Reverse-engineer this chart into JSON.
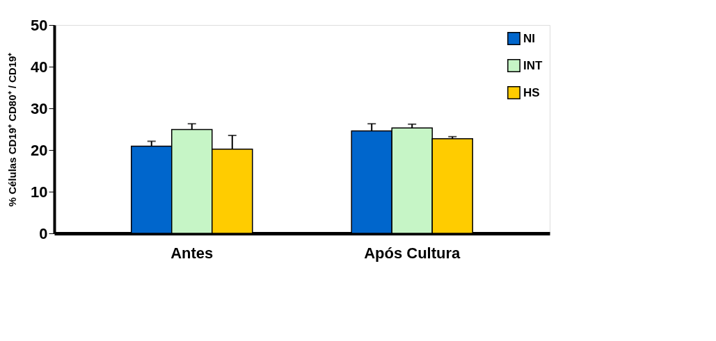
{
  "chart_data": {
    "type": "bar",
    "ylabel": "% Células CD19⁺ CD80⁺ / CD19⁺",
    "categories": [
      "Antes",
      "Após Cultura"
    ],
    "series": [
      {
        "name": "NI",
        "color": "#0066cc",
        "values": [
          20.9,
          24.6
        ],
        "errors": [
          [
            20.9,
            22.1
          ],
          [
            24.6,
            26.3
          ]
        ]
      },
      {
        "name": "INT",
        "color": "#c6f5c6",
        "values": [
          24.9,
          25.3
        ],
        "errors": [
          [
            24.9,
            26.3
          ],
          [
            25.3,
            26.2
          ]
        ]
      },
      {
        "name": "HS",
        "color": "#ffcc00",
        "values": [
          20.2,
          22.7
        ],
        "errors": [
          [
            20.2,
            23.5
          ],
          [
            22.7,
            23.2
          ]
        ]
      }
    ],
    "ylim": [
      0,
      50
    ],
    "yticks": [
      0,
      10,
      20,
      30,
      40,
      50
    ],
    "grid": false,
    "legend": "top right"
  }
}
